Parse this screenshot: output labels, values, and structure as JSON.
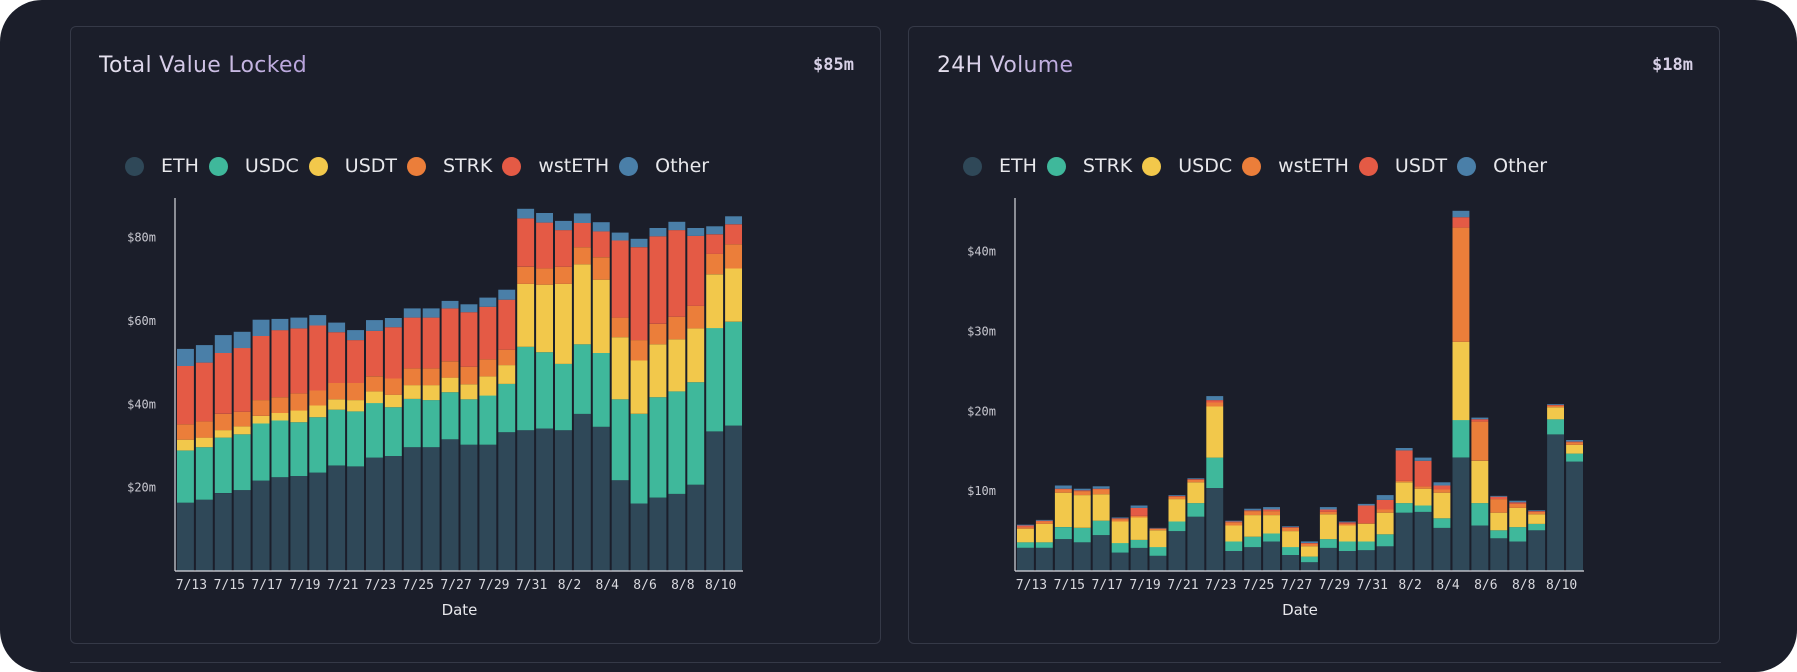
{
  "colors": {
    "background": "#1b1e2a",
    "ETH": "#2f4858",
    "USDC": "#3fb89b",
    "STRK_teal": "#3fb89b",
    "USDT": "#f2c84b",
    "orange": "#eb7e3a",
    "red": "#e45a45",
    "Other": "#4a7fa8"
  },
  "chart_data": [
    {
      "type": "bar",
      "stacked": true,
      "title": "Total Value Locked",
      "headline_value": "$85m",
      "xlabel": "Date",
      "ylabel": "",
      "ylim": [
        0,
        89.5
      ],
      "yticks": [
        20,
        40,
        60,
        80
      ],
      "ytick_labels": [
        "$20m",
        "$40m",
        "$60m",
        "$80m"
      ],
      "legend_position": "top",
      "grid": false,
      "categories": [
        "7/13",
        "7/14",
        "7/15",
        "7/16",
        "7/17",
        "7/18",
        "7/19",
        "7/20",
        "7/21",
        "7/22",
        "7/23",
        "7/24",
        "7/25",
        "7/26",
        "7/27",
        "7/28",
        "7/29",
        "7/30",
        "7/31",
        "8/1",
        "8/2",
        "8/3",
        "8/4",
        "8/5",
        "8/6",
        "8/7",
        "8/8",
        "8/9",
        "8/10",
        "8/11"
      ],
      "xtick_labels": [
        "7/13",
        "7/15",
        "7/17",
        "7/19",
        "7/21",
        "7/23",
        "7/25",
        "7/27",
        "7/29",
        "7/31",
        "8/2",
        "8/4",
        "8/6",
        "8/8",
        "8/10"
      ],
      "series": [
        {
          "name": "ETH",
          "color": "#2f4858",
          "values": [
            16.4,
            17.1,
            18.7,
            19.4,
            21.7,
            22.5,
            22.8,
            23.6,
            25.3,
            25.1,
            27.2,
            27.6,
            29.7,
            29.7,
            31.6,
            30.3,
            30.3,
            33.3,
            33.8,
            34.2,
            33.8,
            37.7,
            34.6,
            21.8,
            16.2,
            17.6,
            18.5,
            20.7,
            33.5,
            34.9
          ]
        },
        {
          "name": "USDC",
          "color": "#3fb89b",
          "values": [
            12.5,
            12.6,
            13.3,
            13.4,
            13.7,
            13.6,
            12.9,
            13.3,
            13.4,
            13.2,
            13.1,
            11.7,
            11.6,
            11.3,
            11.3,
            10.9,
            11.8,
            11.6,
            20.0,
            18.3,
            15.9,
            16.7,
            17.7,
            19.4,
            21.5,
            24.1,
            24.6,
            24.6,
            24.8,
            24.9
          ]
        },
        {
          "name": "USDT",
          "color": "#f2c84b",
          "values": [
            2.6,
            2.3,
            1.8,
            1.9,
            1.8,
            1.8,
            2.8,
            2.8,
            2.5,
            2.7,
            2.8,
            3.0,
            3.3,
            3.6,
            3.5,
            3.6,
            4.6,
            4.5,
            15.1,
            16.2,
            19.2,
            19.2,
            17.6,
            14.9,
            12.8,
            12.7,
            12.5,
            12.9,
            12.9,
            12.8
          ]
        },
        {
          "name": "STRK",
          "color": "#eb7e3a",
          "values": [
            3.7,
            3.9,
            3.9,
            3.5,
            3.8,
            3.8,
            4.1,
            3.6,
            3.9,
            4.1,
            3.6,
            3.9,
            4.0,
            4.0,
            3.9,
            4.2,
            4.1,
            3.7,
            4.1,
            3.9,
            4.1,
            4.1,
            5.4,
            4.7,
            4.9,
            4.9,
            5.4,
            5.4,
            4.9,
            5.8
          ]
        },
        {
          "name": "wstETH",
          "color": "#e45a45",
          "values": [
            14.0,
            14.1,
            14.6,
            15.3,
            15.4,
            16.1,
            15.6,
            15.6,
            12.2,
            10.3,
            10.9,
            12.3,
            12.2,
            12.2,
            12.7,
            13.1,
            12.6,
            12.0,
            11.6,
            11.0,
            8.8,
            5.8,
            6.2,
            18.5,
            22.3,
            21.0,
            20.8,
            16.8,
            4.7,
            4.8
          ]
        },
        {
          "name": "Other",
          "color": "#4a7fa8",
          "values": [
            4.1,
            4.2,
            4.3,
            3.9,
            3.9,
            2.7,
            2.6,
            2.5,
            2.3,
            2.4,
            2.6,
            2.2,
            2.2,
            2.2,
            1.8,
            1.9,
            2.2,
            2.4,
            2.3,
            2.3,
            2.2,
            2.3,
            2.2,
            1.9,
            2.0,
            2.0,
            2.0,
            1.9,
            1.9,
            1.9
          ]
        }
      ]
    },
    {
      "type": "bar",
      "stacked": true,
      "title": "24H Volume",
      "headline_value": "$18m",
      "xlabel": "Date",
      "ylabel": "",
      "ylim": [
        0,
        46.7
      ],
      "yticks": [
        10,
        20,
        30,
        40
      ],
      "ytick_labels": [
        "$10m",
        "$20m",
        "$30m",
        "$40m"
      ],
      "legend_position": "top",
      "grid": false,
      "categories": [
        "7/13",
        "7/14",
        "7/15",
        "7/16",
        "7/17",
        "7/18",
        "7/19",
        "7/20",
        "7/21",
        "7/22",
        "7/23",
        "7/24",
        "7/25",
        "7/26",
        "7/27",
        "7/28",
        "7/29",
        "7/30",
        "7/31",
        "8/1",
        "8/2",
        "8/3",
        "8/4",
        "8/5",
        "8/6",
        "8/7",
        "8/8",
        "8/9",
        "8/10",
        "8/11"
      ],
      "xtick_labels": [
        "7/13",
        "7/15",
        "7/17",
        "7/19",
        "7/21",
        "7/23",
        "7/25",
        "7/27",
        "7/29",
        "7/31",
        "8/2",
        "8/4",
        "8/6",
        "8/8",
        "8/10"
      ],
      "series": [
        {
          "name": "ETH",
          "color": "#2f4858",
          "values": [
            2.9,
            2.9,
            4.0,
            3.6,
            4.5,
            2.3,
            2.9,
            1.9,
            5.0,
            6.8,
            10.4,
            2.5,
            3.0,
            3.7,
            2.0,
            1.1,
            2.9,
            2.5,
            2.6,
            3.1,
            7.3,
            7.4,
            5.4,
            14.2,
            5.7,
            4.1,
            3.7,
            5.1,
            17.1,
            13.7
          ]
        },
        {
          "name": "STRK",
          "color": "#3fb89b",
          "values": [
            0.7,
            0.7,
            1.5,
            1.8,
            1.8,
            1.2,
            1.0,
            1.1,
            1.2,
            1.7,
            3.8,
            1.2,
            1.3,
            1.0,
            1.0,
            0.7,
            1.1,
            1.2,
            1.1,
            1.5,
            1.2,
            0.8,
            1.2,
            4.7,
            2.8,
            1.0,
            1.8,
            0.8,
            1.9,
            1.0
          ]
        },
        {
          "name": "USDC",
          "color": "#f2c84b",
          "values": [
            1.7,
            2.3,
            4.3,
            4.1,
            3.3,
            2.7,
            2.8,
            2.1,
            2.8,
            2.6,
            6.4,
            2.0,
            2.7,
            2.3,
            2.0,
            1.3,
            3.1,
            2.0,
            2.2,
            2.7,
            2.6,
            2.1,
            3.2,
            9.8,
            5.3,
            2.2,
            2.4,
            1.2,
            1.5,
            1.1
          ]
        },
        {
          "name": "wstETH",
          "color": "#eb7e3a",
          "values": [
            0.2,
            0.3,
            0.4,
            0.5,
            0.6,
            0.3,
            0.2,
            0.2,
            0.3,
            0.3,
            0.5,
            0.4,
            0.5,
            0.5,
            0.4,
            0.3,
            0.3,
            0.2,
            0.1,
            0.4,
            0.2,
            0.3,
            0.4,
            14.3,
            4.9,
            1.7,
            0.5,
            0.3,
            0.2,
            0.3
          ]
        },
        {
          "name": "USDT",
          "color": "#e45a45",
          "values": [
            0.2,
            0.1,
            0.1,
            0.1,
            0.1,
            0.1,
            1.0,
            0.05,
            0.1,
            0.1,
            0.3,
            0.1,
            0.1,
            0.2,
            0.1,
            0.1,
            0.3,
            0.2,
            2.2,
            1.2,
            3.8,
            3.2,
            0.5,
            1.3,
            0.3,
            0.3,
            0.2,
            0.1,
            0.1,
            0.1
          ]
        },
        {
          "name": "Other",
          "color": "#4a7fa8",
          "values": [
            0.1,
            0.1,
            0.4,
            0.2,
            0.3,
            0.1,
            0.3,
            0.05,
            0.1,
            0.1,
            0.5,
            0.1,
            0.2,
            0.3,
            0.1,
            0.2,
            0.3,
            0.1,
            0.2,
            0.6,
            0.3,
            0.4,
            0.4,
            0.8,
            0.2,
            0.1,
            0.2,
            0.1,
            0.1,
            0.2
          ]
        }
      ]
    }
  ]
}
